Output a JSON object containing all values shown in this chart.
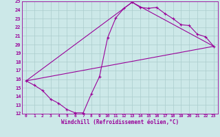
{
  "xlabel": "Windchill (Refroidissement éolien,°C)",
  "background_color": "#cce8e8",
  "line_color": "#990099",
  "grid_color": "#aacccc",
  "xlim": [
    -0.5,
    23.5
  ],
  "ylim": [
    12,
    25
  ],
  "xticks": [
    0,
    1,
    2,
    3,
    4,
    5,
    6,
    7,
    8,
    9,
    10,
    11,
    12,
    13,
    14,
    15,
    16,
    17,
    18,
    19,
    20,
    21,
    22,
    23
  ],
  "yticks": [
    12,
    13,
    14,
    15,
    16,
    17,
    18,
    19,
    20,
    21,
    22,
    23,
    24,
    25
  ],
  "line1_x": [
    0,
    1,
    2,
    3,
    4,
    5,
    6,
    7,
    8,
    9,
    10,
    11,
    12,
    13,
    14,
    15,
    16,
    17,
    18,
    19,
    20,
    21,
    22,
    23
  ],
  "line1_y": [
    15.8,
    15.3,
    14.7,
    13.7,
    13.2,
    12.5,
    12.1,
    12.1,
    14.3,
    16.3,
    20.8,
    23.1,
    24.2,
    24.9,
    24.3,
    24.2,
    24.3,
    23.6,
    23.0,
    22.3,
    22.2,
    21.2,
    20.9,
    19.8
  ],
  "line2_x": [
    0,
    23
  ],
  "line2_y": [
    15.8,
    19.8
  ],
  "line3_x": [
    0,
    13,
    23
  ],
  "line3_y": [
    15.8,
    24.9,
    19.8
  ]
}
